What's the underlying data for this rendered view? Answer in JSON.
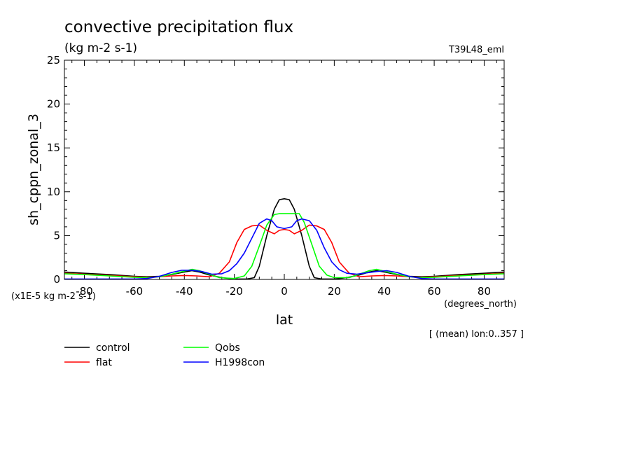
{
  "chart_data": {
    "type": "line",
    "title": "convective precipitation flux",
    "subtitle": "(kg m-2 s-1)",
    "run_label": "T39L48_eml",
    "ylabel": "sh_cppn_zonal_3",
    "xlabel": "lat",
    "x_units": "(degrees_north)",
    "y_scale_note": "(x1E-5 kg m-2 s-1)",
    "footnote": "[ (mean) lon:0..357 ]",
    "xlim": [
      -88,
      88
    ],
    "ylim": [
      0,
      25
    ],
    "x_ticks": [
      -80,
      -60,
      -40,
      -20,
      0,
      20,
      40,
      60,
      80
    ],
    "y_ticks": [
      0,
      5,
      10,
      15,
      20,
      25
    ],
    "x_tick_labels": [
      "-80",
      "-60",
      "-40",
      "-20",
      "0",
      "20",
      "40",
      "60",
      "80"
    ],
    "y_tick_labels": [
      "0",
      "5",
      "10",
      "15",
      "20",
      "25"
    ],
    "grid": false,
    "legend_position": "bottom-left",
    "series": [
      {
        "name": "control",
        "color": "#000000",
        "points": [
          [
            -88,
            0.85
          ],
          [
            -80,
            0.7
          ],
          [
            -70,
            0.55
          ],
          [
            -60,
            0.35
          ],
          [
            -55,
            0.3
          ],
          [
            -50,
            0.35
          ],
          [
            -45,
            0.55
          ],
          [
            -40,
            0.85
          ],
          [
            -37,
            1.0
          ],
          [
            -34,
            0.85
          ],
          [
            -30,
            0.5
          ],
          [
            -25,
            0.2
          ],
          [
            -20,
            0.05
          ],
          [
            -15,
            0.05
          ],
          [
            -12,
            0.2
          ],
          [
            -10,
            1.5
          ],
          [
            -7,
            5.0
          ],
          [
            -4,
            8.0
          ],
          [
            -2,
            9.1
          ],
          [
            0,
            9.2
          ],
          [
            2,
            9.1
          ],
          [
            4,
            8.0
          ],
          [
            7,
            5.0
          ],
          [
            10,
            1.5
          ],
          [
            12,
            0.2
          ],
          [
            15,
            0.05
          ],
          [
            20,
            0.05
          ],
          [
            25,
            0.2
          ],
          [
            30,
            0.5
          ],
          [
            34,
            0.85
          ],
          [
            37,
            1.0
          ],
          [
            40,
            0.85
          ],
          [
            45,
            0.55
          ],
          [
            50,
            0.35
          ],
          [
            55,
            0.3
          ],
          [
            60,
            0.35
          ],
          [
            70,
            0.55
          ],
          [
            80,
            0.7
          ],
          [
            88,
            0.85
          ]
        ]
      },
      {
        "name": "flat",
        "color": "#ff0000",
        "points": [
          [
            -88,
            0.7
          ],
          [
            -80,
            0.6
          ],
          [
            -70,
            0.45
          ],
          [
            -60,
            0.3
          ],
          [
            -55,
            0.25
          ],
          [
            -50,
            0.3
          ],
          [
            -45,
            0.4
          ],
          [
            -40,
            0.45
          ],
          [
            -35,
            0.4
          ],
          [
            -30,
            0.3
          ],
          [
            -26,
            0.7
          ],
          [
            -22,
            2.0
          ],
          [
            -19,
            4.2
          ],
          [
            -16,
            5.7
          ],
          [
            -13,
            6.1
          ],
          [
            -10,
            6.2
          ],
          [
            -7,
            5.6
          ],
          [
            -4,
            5.2
          ],
          [
            -2,
            5.6
          ],
          [
            0,
            5.7
          ],
          [
            2,
            5.6
          ],
          [
            4,
            5.2
          ],
          [
            7,
            5.6
          ],
          [
            10,
            6.2
          ],
          [
            13,
            6.1
          ],
          [
            16,
            5.7
          ],
          [
            19,
            4.2
          ],
          [
            22,
            2.0
          ],
          [
            26,
            0.7
          ],
          [
            30,
            0.3
          ],
          [
            35,
            0.4
          ],
          [
            40,
            0.45
          ],
          [
            45,
            0.4
          ],
          [
            50,
            0.3
          ],
          [
            55,
            0.25
          ],
          [
            60,
            0.3
          ],
          [
            70,
            0.45
          ],
          [
            80,
            0.6
          ],
          [
            88,
            0.7
          ]
        ]
      },
      {
        "name": "Qobs",
        "color": "#00ff00",
        "points": [
          [
            -88,
            0.65
          ],
          [
            -80,
            0.55
          ],
          [
            -70,
            0.4
          ],
          [
            -60,
            0.25
          ],
          [
            -55,
            0.2
          ],
          [
            -50,
            0.3
          ],
          [
            -45,
            0.6
          ],
          [
            -40,
            0.95
          ],
          [
            -37,
            1.15
          ],
          [
            -34,
            1.0
          ],
          [
            -30,
            0.6
          ],
          [
            -26,
            0.2
          ],
          [
            -20,
            0.1
          ],
          [
            -16,
            0.4
          ],
          [
            -13,
            1.5
          ],
          [
            -10,
            3.8
          ],
          [
            -7,
            6.2
          ],
          [
            -4,
            7.4
          ],
          [
            -2,
            7.5
          ],
          [
            0,
            7.5
          ],
          [
            2,
            7.5
          ],
          [
            4,
            7.5
          ],
          [
            6,
            7.5
          ],
          [
            8,
            6.5
          ],
          [
            11,
            4.0
          ],
          [
            14,
            1.5
          ],
          [
            17,
            0.5
          ],
          [
            20,
            0.2
          ],
          [
            26,
            0.2
          ],
          [
            30,
            0.6
          ],
          [
            34,
            1.0
          ],
          [
            37,
            1.15
          ],
          [
            40,
            0.95
          ],
          [
            45,
            0.6
          ],
          [
            50,
            0.3
          ],
          [
            55,
            0.2
          ],
          [
            60,
            0.25
          ],
          [
            70,
            0.4
          ],
          [
            80,
            0.55
          ],
          [
            88,
            0.65
          ]
        ]
      },
      {
        "name": "H1998con",
        "color": "#0000ff",
        "points": [
          [
            -88,
            0.05
          ],
          [
            -80,
            0.05
          ],
          [
            -70,
            0.05
          ],
          [
            -60,
            0.05
          ],
          [
            -55,
            0.1
          ],
          [
            -50,
            0.35
          ],
          [
            -45,
            0.8
          ],
          [
            -41,
            1.05
          ],
          [
            -37,
            1.05
          ],
          [
            -33,
            0.9
          ],
          [
            -29,
            0.6
          ],
          [
            -25,
            0.65
          ],
          [
            -22,
            1.0
          ],
          [
            -19,
            1.8
          ],
          [
            -16,
            3.0
          ],
          [
            -13,
            4.7
          ],
          [
            -10,
            6.4
          ],
          [
            -7,
            6.9
          ],
          [
            -5,
            6.7
          ],
          [
            -3,
            6.0
          ],
          [
            0,
            5.8
          ],
          [
            3,
            6.0
          ],
          [
            5,
            6.7
          ],
          [
            7,
            6.9
          ],
          [
            10,
            6.7
          ],
          [
            13,
            5.6
          ],
          [
            16,
            3.6
          ],
          [
            19,
            2.0
          ],
          [
            22,
            1.1
          ],
          [
            25,
            0.7
          ],
          [
            29,
            0.6
          ],
          [
            33,
            0.75
          ],
          [
            37,
            0.9
          ],
          [
            41,
            1.0
          ],
          [
            45,
            0.8
          ],
          [
            50,
            0.35
          ],
          [
            55,
            0.1
          ],
          [
            60,
            0.05
          ],
          [
            70,
            0.05
          ],
          [
            80,
            0.05
          ],
          [
            88,
            0.05
          ]
        ]
      }
    ]
  }
}
